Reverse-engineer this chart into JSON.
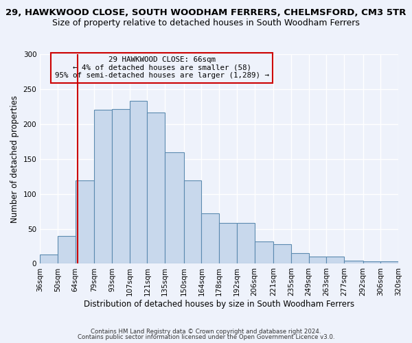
{
  "title": "29, HAWKWOOD CLOSE, SOUTH WOODHAM FERRERS, CHELMSFORD, CM3 5TR",
  "subtitle": "Size of property relative to detached houses in South Woodham Ferrers",
  "xlabel": "Distribution of detached houses by size in South Woodham Ferrers",
  "ylabel": "Number of detached properties",
  "bar_values": [
    13,
    40,
    119,
    220,
    221,
    233,
    217,
    160,
    119,
    72,
    58,
    58,
    32,
    28,
    15,
    10,
    10,
    4,
    3,
    3
  ],
  "bin_edges": [
    36,
    50,
    64,
    79,
    93,
    107,
    121,
    135,
    150,
    164,
    178,
    192,
    206,
    221,
    235,
    249,
    263,
    277,
    292,
    306,
    320
  ],
  "tick_labels": [
    "36sqm",
    "50sqm",
    "64sqm",
    "79sqm",
    "93sqm",
    "107sqm",
    "121sqm",
    "135sqm",
    "150sqm",
    "164sqm",
    "178sqm",
    "192sqm",
    "206sqm",
    "221sqm",
    "235sqm",
    "249sqm",
    "263sqm",
    "277sqm",
    "292sqm",
    "306sqm",
    "320sqm"
  ],
  "bar_color": "#c8d8ec",
  "bar_edge_color": "#5b8ab0",
  "background_color": "#eef2fb",
  "grid_color": "#ffffff",
  "vline_x": 66,
  "vline_color": "#cc0000",
  "annotation_lines": [
    "29 HAWKWOOD CLOSE: 66sqm",
    "← 4% of detached houses are smaller (58)",
    "95% of semi-detached houses are larger (1,289) →"
  ],
  "annotation_box_color": "#cc0000",
  "ylim": [
    0,
    300
  ],
  "yticks": [
    0,
    50,
    100,
    150,
    200,
    250,
    300
  ],
  "footer_lines": [
    "Contains HM Land Registry data © Crown copyright and database right 2024.",
    "Contains public sector information licensed under the Open Government Licence v3.0."
  ],
  "title_fontsize": 9.5,
  "subtitle_fontsize": 9,
  "xlabel_fontsize": 8.5,
  "ylabel_fontsize": 8.5,
  "tick_fontsize": 7.5,
  "footer_fontsize": 6.2
}
